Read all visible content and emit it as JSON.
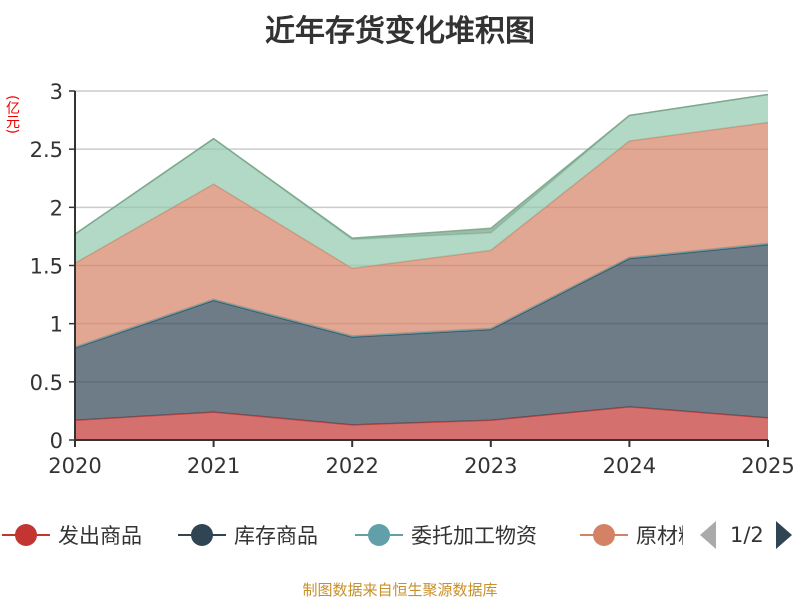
{
  "chart_data": {
    "type": "area",
    "stacked": true,
    "title": "近年存货变化堆积图",
    "ylabel": "(亿元)",
    "xlabel": "",
    "categories": [
      "2020",
      "2021",
      "2022",
      "2023",
      "2024",
      "2025"
    ],
    "ylim": [
      0,
      3
    ],
    "yticks": [
      "0",
      "0.5",
      "1",
      "1.5",
      "2",
      "2.5",
      "3"
    ],
    "grid": true,
    "series": [
      {
        "name": "发出商品",
        "color": "#c23531",
        "values": [
          0.17,
          0.24,
          0.13,
          0.17,
          0.285,
          0.19
        ]
      },
      {
        "name": "库存商品",
        "color": "#2f4554",
        "values": [
          0.62,
          0.96,
          0.755,
          0.78,
          1.275,
          1.49
        ]
      },
      {
        "name": "委托加工物资",
        "color": "#61a0a8",
        "values": [
          0.01,
          0.01,
          0.01,
          0.01,
          0.01,
          0.01
        ]
      },
      {
        "name": "原材料",
        "color": "#d48265",
        "values": [
          0.72,
          0.99,
          0.58,
          0.67,
          1.0,
          1.04
        ]
      },
      {
        "name": "",
        "color": "#91c7ae",
        "values": [
          0.25,
          0.39,
          0.25,
          0.15,
          0.22,
          0.24
        ]
      },
      {
        "name": "",
        "color": "#749f83",
        "values": [
          0,
          0,
          0.01,
          0.04,
          0,
          0
        ]
      }
    ],
    "legend": {
      "placement": "bottom",
      "page": "1/2"
    }
  },
  "footer": "制图数据来自恒生聚源数据库"
}
